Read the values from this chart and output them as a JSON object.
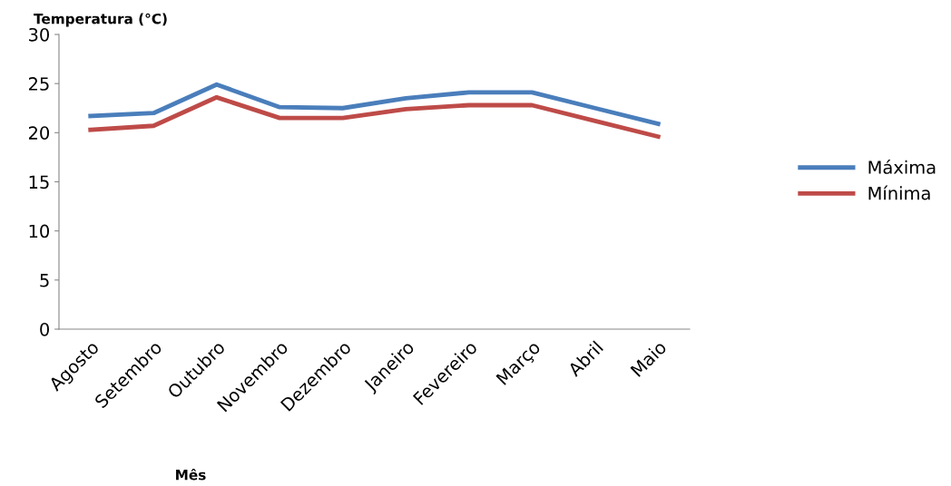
{
  "chart_data": {
    "type": "line",
    "xlabel": "Mês",
    "ylabel": "Temperatura (°C)",
    "categories": [
      "Agosto",
      "Setembro",
      "Outubro",
      "Novembro",
      "Dezembro",
      "Janeiro",
      "Fevereiro",
      "Março",
      "Abril",
      "Maio"
    ],
    "series": [
      {
        "name": "Máxima",
        "color": "#4a7ebb",
        "values": [
          21.7,
          22.0,
          24.9,
          22.6,
          22.5,
          23.5,
          24.1,
          24.1,
          22.5,
          20.9
        ]
      },
      {
        "name": "Mínima",
        "color": "#be4b48",
        "values": [
          20.3,
          20.7,
          23.6,
          21.5,
          21.5,
          22.4,
          22.8,
          22.8,
          21.2,
          19.6
        ]
      }
    ],
    "ylim": [
      0,
      30
    ],
    "yticks": [
      0,
      5,
      10,
      15,
      20,
      25,
      30
    ],
    "grid": false,
    "legend": "right",
    "marker": "none",
    "line_style": "solid"
  }
}
